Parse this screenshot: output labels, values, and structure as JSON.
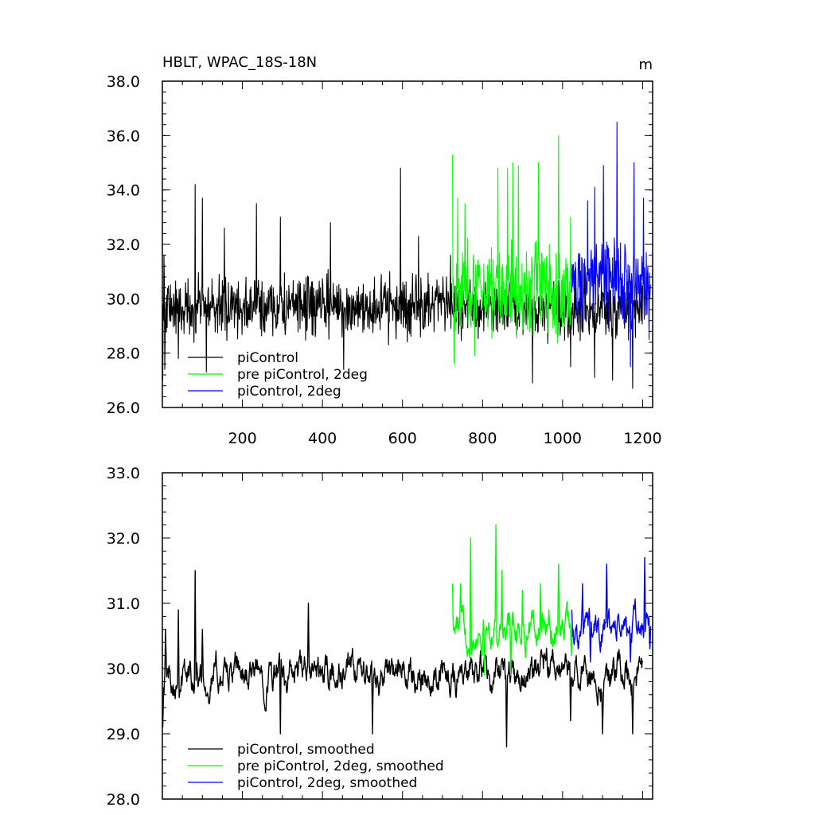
{
  "chart_data": [
    {
      "type": "line",
      "title": "HBLT, WPAC_18S-18N",
      "units": "m",
      "xlim": [
        0,
        1225
      ],
      "ylim": [
        26,
        38
      ],
      "xticks": [
        200,
        400,
        600,
        800,
        1000,
        1200
      ],
      "xtick_labels": [
        "200",
        "400",
        "600",
        "800",
        "1000",
        "1200"
      ],
      "yticks": [
        26,
        28,
        30,
        32,
        34,
        36,
        38
      ],
      "ytick_labels": [
        "26.0",
        "28.0",
        "30.0",
        "32.0",
        "34.0",
        "36.0",
        "38.0"
      ],
      "legend_position": "bottom-left",
      "series": [
        {
          "name": "piControl",
          "color": "#000000",
          "x_start": 1,
          "x_end": 1200,
          "points": 1200,
          "mean": 29.7,
          "spread": 1.0,
          "spikes": [
            [
              1,
              27.0
            ],
            [
              4,
              31.6
            ],
            [
              6,
              27.4
            ],
            [
              40,
              27.8
            ],
            [
              82,
              34.2
            ],
            [
              100,
              33.7
            ],
            [
              110,
              27.3
            ],
            [
              155,
              32.6
            ],
            [
              235,
              33.5
            ],
            [
              295,
              33.0
            ],
            [
              420,
              32.8
            ],
            [
              453,
              27.4
            ],
            [
              595,
              34.8
            ],
            [
              640,
              32.3
            ],
            [
              720,
              31.6
            ],
            [
              925,
              26.9
            ],
            [
              1020,
              27.5
            ],
            [
              1080,
              27.1
            ],
            [
              1125,
              27.0
            ],
            [
              1175,
              26.7
            ]
          ]
        },
        {
          "name": "pre piControl, 2deg",
          "color": "#00ff00",
          "x_start": 725,
          "x_end": 1025,
          "points": 300,
          "mean": 30.4,
          "spread": 1.5,
          "spikes": [
            [
              725,
              35.3
            ],
            [
              729,
              27.6
            ],
            [
              738,
              33.7
            ],
            [
              756,
              33.5
            ],
            [
              780,
              27.9
            ],
            [
              838,
              34.8
            ],
            [
              862,
              34.8
            ],
            [
              875,
              35.0
            ],
            [
              890,
              34.9
            ],
            [
              940,
              35.0
            ],
            [
              990,
              36.0
            ],
            [
              1020,
              33.0
            ]
          ]
        },
        {
          "name": "piControl, 2deg",
          "color": "#0000ff",
          "x_start": 1023,
          "x_end": 1220,
          "points": 200,
          "mean": 30.6,
          "spread": 1.4,
          "spikes": [
            [
              1063,
              33.6
            ],
            [
              1080,
              34.1
            ],
            [
              1102,
              34.9
            ],
            [
              1136,
              36.5
            ],
            [
              1170,
              27.5
            ],
            [
              1178,
              35.0
            ],
            [
              1202,
              33.7
            ],
            [
              1216,
              28.5
            ]
          ]
        }
      ]
    },
    {
      "type": "line",
      "xlim": [
        0,
        1225
      ],
      "ylim": [
        28,
        33
      ],
      "xticks": [
        200,
        400,
        600,
        800,
        1000,
        1200
      ],
      "yticks": [
        28,
        29,
        30,
        31,
        32,
        33
      ],
      "ytick_labels": [
        "28.0",
        "29.0",
        "30.0",
        "31.0",
        "32.0",
        "33.0"
      ],
      "legend_position": "bottom-left",
      "series": [
        {
          "name": "piControl, smoothed",
          "color": "#000000",
          "x_start": 1,
          "x_end": 1200,
          "points": 1200,
          "mean": 29.9,
          "spread": 0.35,
          "spikes": [
            [
              1,
              29.1
            ],
            [
              8,
              30.6
            ],
            [
              40,
              30.9
            ],
            [
              82,
              31.5
            ],
            [
              100,
              30.6
            ],
            [
              295,
              29.0
            ],
            [
              365,
              31.0
            ],
            [
              525,
              29.0
            ],
            [
              720,
              29.6
            ],
            [
              860,
              28.8
            ],
            [
              1020,
              29.2
            ],
            [
              1100,
              29.0
            ],
            [
              1175,
              29.0
            ],
            [
              1200,
              30.1
            ]
          ]
        },
        {
          "name": "pre piControl, 2deg, smoothed",
          "color": "#00ff00",
          "x_start": 725,
          "x_end": 1025,
          "points": 300,
          "mean": 30.6,
          "spread": 0.35,
          "spikes": [
            [
              725,
              31.3
            ],
            [
              745,
              31.3
            ],
            [
              770,
              32.0
            ],
            [
              805,
              29.9
            ],
            [
              833,
              32.2
            ],
            [
              848,
              31.5
            ],
            [
              870,
              29.9
            ],
            [
              900,
              31.2
            ],
            [
              945,
              31.3
            ],
            [
              990,
              31.6
            ],
            [
              1022,
              30.2
            ]
          ]
        },
        {
          "name": "piControl, 2deg, smoothed",
          "color": "#0000ff",
          "x_start": 1023,
          "x_end": 1220,
          "points": 200,
          "mean": 30.6,
          "spread": 0.35,
          "spikes": [
            [
              1023,
              30.9
            ],
            [
              1050,
              31.3
            ],
            [
              1070,
              30.1
            ],
            [
              1110,
              31.6
            ],
            [
              1170,
              30.1
            ],
            [
              1205,
              31.7
            ],
            [
              1218,
              30.3
            ],
            [
              1222,
              30.9
            ]
          ]
        }
      ]
    }
  ]
}
